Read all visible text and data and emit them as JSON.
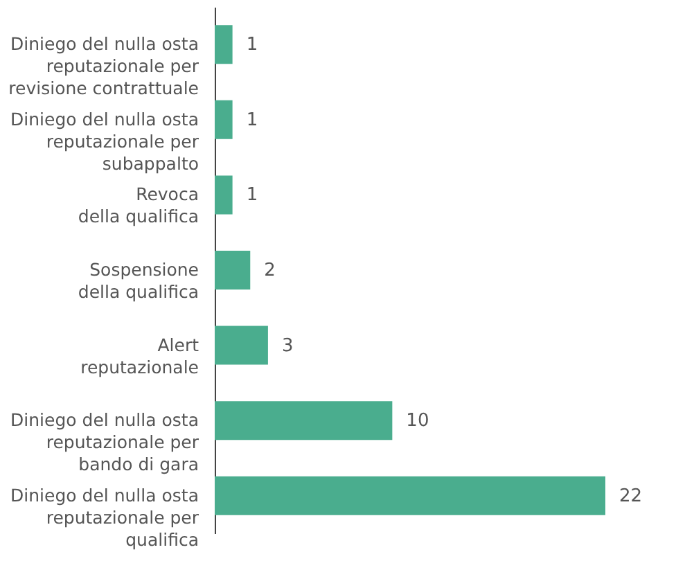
{
  "chart_data": {
    "type": "bar",
    "orientation": "horizontal",
    "data_labels": true,
    "categories": [
      "Diniego del nulla osta\nreputazionale per\nrevisione contrattuale",
      "Diniego del nulla osta\nreputazionale per\nsubappalto",
      "Revoca\ndella qualifica",
      "Sospensione\ndella qualifica",
      "Alert\nreputazionale",
      "Diniego del nulla osta\nreputazionale per\nbando di gara",
      "Diniego del nulla osta\nreputazionale per\nqualifica"
    ],
    "values": [
      1,
      1,
      1,
      2,
      3,
      10,
      22
    ],
    "color": "#4aad8e"
  }
}
